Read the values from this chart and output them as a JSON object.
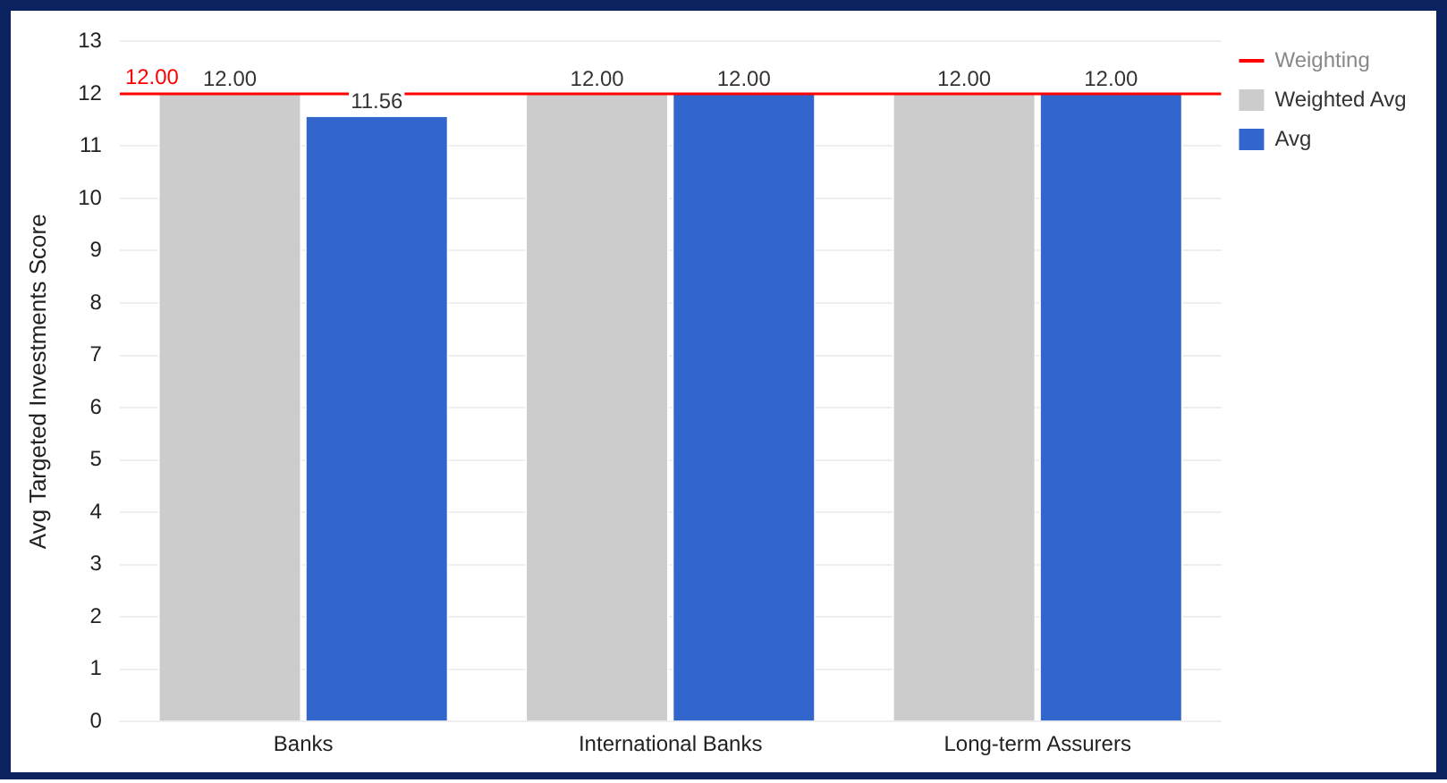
{
  "chart_data": {
    "type": "bar",
    "categories": [
      "Banks",
      "International Banks",
      "Long-term Assurers"
    ],
    "ylabel": "Avg Targeted Investments Score",
    "series": [
      {
        "name": "Weighted Avg",
        "color": "#cccccc",
        "values": [
          12,
          12,
          12
        ],
        "value_labels": [
          "12.00",
          "12.00",
          "12.00"
        ]
      },
      {
        "name": "Avg",
        "color": "#3366cc",
        "values": [
          11.56,
          12,
          12
        ],
        "value_labels": [
          "11.56",
          "12.00",
          "12.00"
        ]
      }
    ],
    "ylim": [
      0,
      13
    ],
    "yticks": [
      0,
      1,
      2,
      3,
      4,
      5,
      6,
      7,
      8,
      9,
      10,
      11,
      12,
      13
    ],
    "ref_lines": [
      {
        "axis": "y",
        "value": 12,
        "label": "Weighting",
        "color": "#ff0000"
      }
    ],
    "annotations": [
      {
        "text": "12.00",
        "y": 12
      }
    ],
    "grid": "y",
    "legend": "top right"
  }
}
